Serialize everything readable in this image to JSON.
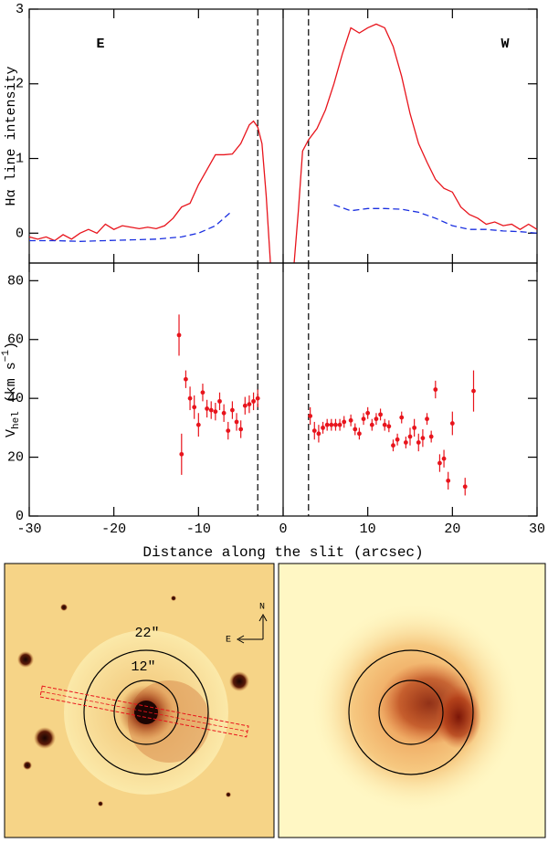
{
  "chart_data": [
    {
      "type": "line",
      "ylabel": "Hα line intensity",
      "xlim": [
        -30,
        30
      ],
      "ylim": [
        -0.4,
        3
      ],
      "xticks": [
        -30,
        -20,
        -10,
        0,
        10,
        20,
        30
      ],
      "yticks": [
        0,
        1,
        2,
        3
      ],
      "xtick_labels": false,
      "annotations": [
        "E",
        "W"
      ],
      "vlines": [
        {
          "value": -3,
          "style": "dashed"
        },
        {
          "value": 0,
          "style": "solid"
        },
        {
          "value": 3,
          "style": "dashed"
        }
      ],
      "series": [
        {
          "color": "#e8141c",
          "style": "solid",
          "x": [
            -30,
            -29,
            -28,
            -27,
            -26,
            -25,
            -24,
            -23,
            -22,
            -21,
            -20,
            -19,
            -18,
            -17,
            -16,
            -15,
            -14,
            -13,
            -12,
            -11,
            -10,
            -9,
            -8,
            -7,
            -6,
            -5,
            -4,
            -3.5,
            -3,
            -2.5,
            -2,
            -1.5,
            0,
            1.3,
            1.8,
            2.3,
            3,
            4,
            5,
            6,
            7,
            8,
            9,
            10,
            11,
            12,
            13,
            14,
            15,
            16,
            17,
            18,
            19,
            20,
            21,
            22,
            23,
            24,
            25,
            26,
            27,
            28,
            29,
            30
          ],
          "values": [
            -0.05,
            -0.08,
            -0.05,
            -0.1,
            -0.02,
            -0.08,
            0.0,
            0.05,
            0.0,
            0.12,
            0.05,
            0.1,
            0.08,
            0.06,
            0.08,
            0.06,
            0.1,
            0.2,
            0.35,
            0.4,
            0.65,
            0.85,
            1.05,
            1.05,
            1.06,
            1.2,
            1.45,
            1.5,
            1.42,
            1.2,
            0.5,
            -0.4,
            null,
            -0.4,
            0.3,
            1.1,
            1.25,
            1.4,
            1.65,
            2.0,
            2.4,
            2.75,
            2.68,
            2.75,
            2.8,
            2.75,
            2.5,
            2.1,
            1.6,
            1.2,
            0.95,
            0.72,
            0.6,
            0.55,
            0.35,
            0.25,
            0.2,
            0.12,
            0.15,
            0.1,
            0.12,
            0.05,
            0.12,
            0.05
          ]
        },
        {
          "color": "#1a2fe0",
          "style": "dashed",
          "x": [
            -30,
            -27,
            -24,
            -21,
            -18,
            -15,
            -12,
            -10,
            -8,
            -6,
            0,
            6,
            8,
            10,
            12,
            14,
            16,
            18,
            20,
            22,
            24,
            26,
            28,
            30
          ],
          "values": [
            -0.1,
            -0.1,
            -0.11,
            -0.1,
            -0.09,
            -0.08,
            -0.05,
            0.0,
            0.1,
            0.3,
            null,
            0.38,
            0.3,
            0.33,
            0.33,
            0.32,
            0.28,
            0.2,
            0.1,
            0.05,
            0.05,
            0.03,
            0.02,
            0.0
          ]
        }
      ]
    },
    {
      "type": "scatter",
      "xlabel": "Distance along the slit (arcsec)",
      "ylabel": {
        "main": "V",
        "sub": "hel",
        "unit": " (km s",
        "sup": "−1",
        "close": ")"
      },
      "xlim": [
        -30,
        30
      ],
      "ylim": [
        0,
        86
      ],
      "xticks": [
        -30,
        -20,
        -10,
        0,
        10,
        20,
        30
      ],
      "yticks": [
        0,
        20,
        40,
        60,
        80
      ],
      "xtick_labels": true,
      "vlines": [
        {
          "value": -3,
          "style": "dashed"
        },
        {
          "value": 0,
          "style": "solid"
        },
        {
          "value": 3,
          "style": "dashed"
        }
      ],
      "series": [
        {
          "color": "#e8141c",
          "x": [
            -12.3,
            -12,
            -11.5,
            -11,
            -10.5,
            -10,
            -9.5,
            -9,
            -8.5,
            -8,
            -7.5,
            -7,
            -6.5,
            -6,
            -5.5,
            -5,
            -4.5,
            -4,
            -3.5,
            -3,
            3.2,
            3.7,
            4.2,
            4.7,
            5.2,
            5.7,
            6.2,
            6.7,
            7.2,
            8,
            8.5,
            9,
            9.5,
            10,
            10.5,
            11,
            11.5,
            12,
            12.5,
            13,
            13.5,
            14,
            14.5,
            15,
            15.5,
            16,
            16.5,
            17,
            17.5,
            18,
            18.5,
            19,
            19.5,
            20,
            21.5,
            22.5
          ],
          "values": [
            61.5,
            21,
            46.5,
            40,
            37,
            31,
            42,
            36.5,
            36,
            35.5,
            39,
            35,
            29,
            36,
            32,
            29.5,
            37.5,
            38,
            39,
            40,
            34,
            29,
            28,
            30,
            31,
            31,
            31,
            31,
            32,
            32.5,
            29.5,
            28,
            33,
            35,
            31,
            33,
            34.5,
            31,
            30.5,
            24,
            26,
            33.5,
            25,
            27,
            30,
            25,
            26.5,
            33,
            27,
            43,
            18,
            19.5,
            12,
            31.5,
            10,
            42.5
          ],
          "errors": [
            7,
            7,
            3,
            4,
            4,
            4,
            3,
            3,
            3,
            3,
            3,
            3,
            3,
            3,
            3,
            3,
            3,
            3,
            3,
            3,
            3,
            3,
            3,
            2,
            2,
            2,
            2,
            2,
            2,
            2,
            2,
            2,
            2,
            2,
            2,
            2,
            2,
            2,
            2,
            2,
            2,
            2,
            2,
            3,
            3,
            3,
            3,
            2,
            2,
            3,
            3,
            3,
            3,
            4,
            3,
            7
          ]
        }
      ]
    }
  ],
  "images": [
    {
      "labels": {
        "outer": "22\"",
        "inner": "12\"",
        "north": "N",
        "east": "E"
      }
    },
    {
      "labels": {}
    }
  ]
}
